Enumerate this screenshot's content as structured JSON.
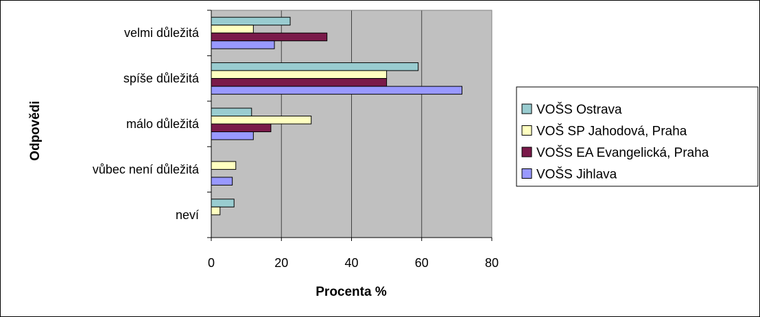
{
  "chart_data": {
    "type": "bar",
    "orientation": "horizontal",
    "title": "",
    "xlabel": "Procenta %",
    "ylabel": "Odpovědi",
    "xlim": [
      0,
      80
    ],
    "xticks": [
      0,
      20,
      40,
      60,
      80
    ],
    "grid": true,
    "legend_position": "right",
    "categories": [
      "velmi důležitá",
      "spíše důležitá",
      "málo důležitá",
      "vůbec není důležitá",
      "neví"
    ],
    "series": [
      {
        "name": "VOŠS Ostrava",
        "color": "#99ccd0",
        "values": [
          22.5,
          59,
          11.5,
          0,
          6.5
        ]
      },
      {
        "name": "VOŠ SP Jahodová, Praha",
        "color": "#ffffc0",
        "values": [
          12,
          50,
          28.5,
          7,
          2.5
        ]
      },
      {
        "name": "VOŠS EA Evangelická, Praha",
        "color": "#7a1a4a",
        "values": [
          33,
          50,
          17,
          0,
          0
        ]
      },
      {
        "name": "VOŠS Jihlava",
        "color": "#9999ff",
        "values": [
          18,
          71.5,
          12,
          6,
          0
        ]
      }
    ],
    "plot_background": "#c0c0c0"
  }
}
